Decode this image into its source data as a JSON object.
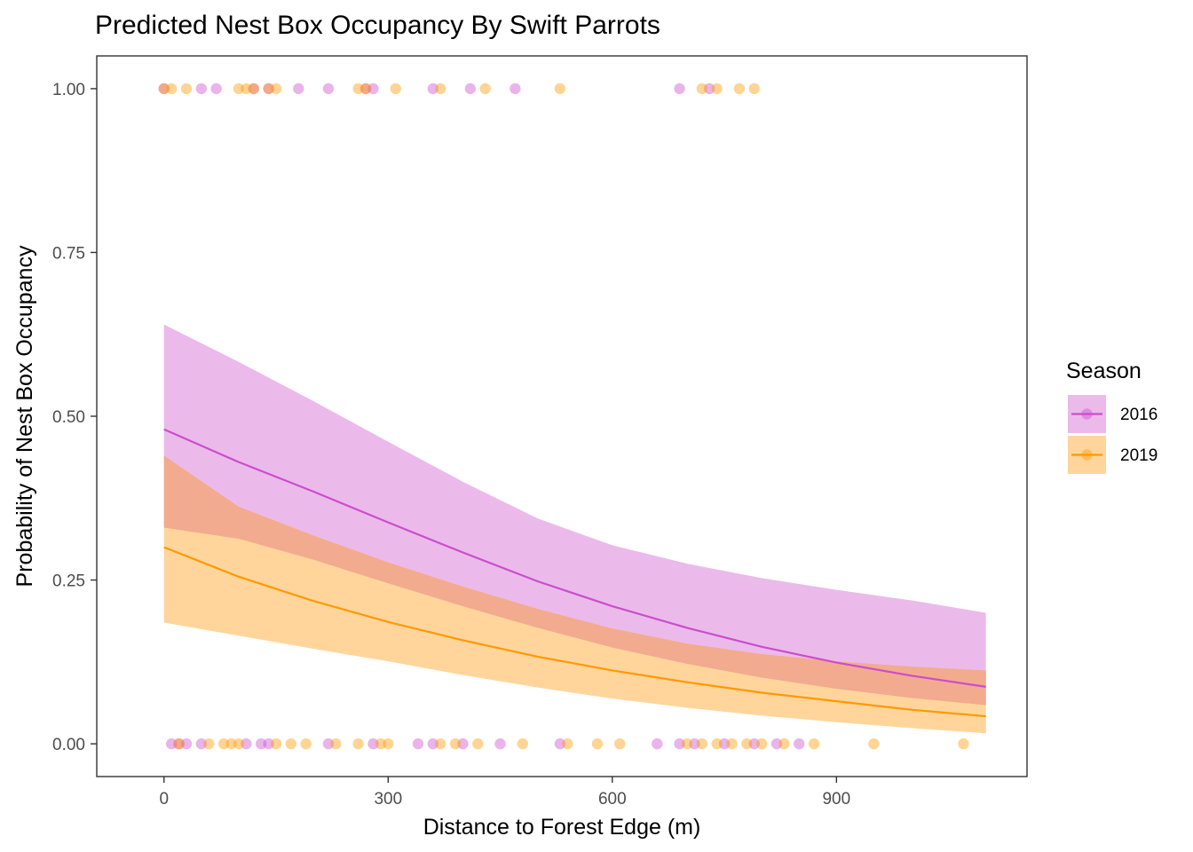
{
  "chart_data": {
    "type": "line",
    "title": "Predicted Nest Box Occupancy By Swift Parrots",
    "xlabel": "Distance to Forest Edge (m)",
    "ylabel": "Probability of Nest Box Occupancy",
    "xlim": [
      -90,
      1155
    ],
    "ylim": [
      -0.05,
      1.05
    ],
    "x_ticks": [
      0,
      300,
      600,
      900
    ],
    "x_tick_labels": [
      "0",
      "300",
      "600",
      "900"
    ],
    "y_ticks": [
      0,
      0.25,
      0.5,
      0.75,
      1.0
    ],
    "y_tick_labels": [
      "0.00",
      "0.25",
      "0.50",
      "0.75",
      "1.00"
    ],
    "grid": false,
    "legend": {
      "title": "Season",
      "placement": "right",
      "entries": [
        "2016",
        "2019"
      ]
    },
    "series": [
      {
        "name": "2016",
        "color": "#CC4DCC",
        "fill": "#EBBAEB",
        "x": [
          0,
          100,
          200,
          300,
          400,
          500,
          600,
          700,
          800,
          900,
          1000,
          1100
        ],
        "y": [
          0.48,
          0.43,
          0.385,
          0.338,
          0.292,
          0.248,
          0.21,
          0.177,
          0.148,
          0.124,
          0.104,
          0.087
        ],
        "lower": [
          0.33,
          0.313,
          0.281,
          0.245,
          0.21,
          0.177,
          0.147,
          0.122,
          0.101,
          0.084,
          0.07,
          0.059
        ],
        "upper": [
          0.64,
          0.583,
          0.523,
          0.461,
          0.4,
          0.344,
          0.303,
          0.275,
          0.253,
          0.235,
          0.219,
          0.2
        ],
        "points_y1": [
          0,
          50,
          70,
          120,
          140,
          180,
          220,
          270,
          280,
          360,
          410,
          470,
          690,
          730
        ],
        "points_y0": [
          10,
          20,
          30,
          50,
          110,
          130,
          140,
          220,
          280,
          340,
          360,
          400,
          450,
          530,
          660,
          690,
          710,
          750,
          790,
          820,
          850
        ]
      },
      {
        "name": "2019",
        "color": "#FF9900",
        "fill": "#FFD59C",
        "x": [
          0,
          100,
          200,
          300,
          400,
          500,
          600,
          700,
          800,
          900,
          1000,
          1100
        ],
        "y": [
          0.3,
          0.255,
          0.218,
          0.186,
          0.158,
          0.133,
          0.112,
          0.094,
          0.078,
          0.065,
          0.052,
          0.042
        ],
        "lower": [
          0.185,
          0.165,
          0.145,
          0.126,
          0.105,
          0.086,
          0.069,
          0.055,
          0.043,
          0.033,
          0.024,
          0.016
        ],
        "upper": [
          0.44,
          0.362,
          0.318,
          0.277,
          0.24,
          0.206,
          0.176,
          0.153,
          0.137,
          0.126,
          0.118,
          0.112
        ],
        "points_y1": [
          0,
          10,
          30,
          100,
          110,
          120,
          140,
          150,
          260,
          270,
          310,
          370,
          430,
          530,
          720,
          740,
          770,
          790
        ],
        "points_y0": [
          20,
          60,
          80,
          90,
          100,
          150,
          170,
          190,
          230,
          260,
          290,
          300,
          370,
          390,
          420,
          480,
          540,
          580,
          610,
          700,
          720,
          740,
          760,
          780,
          800,
          830,
          870,
          950,
          1070
        ]
      }
    ],
    "overlap_color": "#F2AB8F"
  }
}
